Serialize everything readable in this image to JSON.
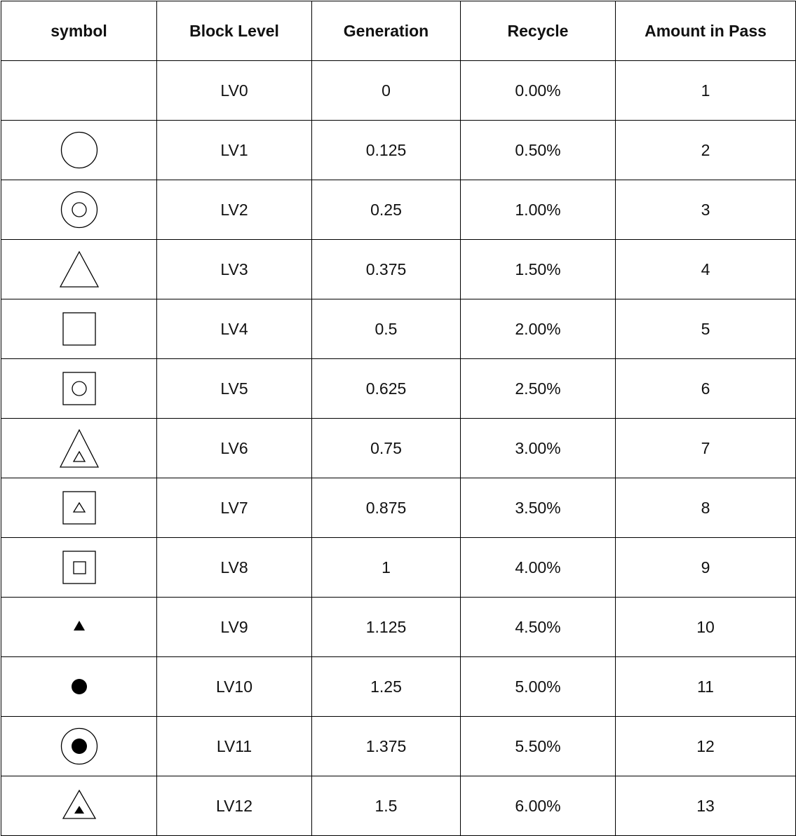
{
  "table": {
    "headers": [
      "symbol",
      "Block Level",
      "Generation",
      "Recycle",
      "Amount in Pass"
    ],
    "rows": [
      {
        "symbol": "none",
        "level": "LV0",
        "generation": "0",
        "recycle": "0.00%",
        "amount": "1"
      },
      {
        "symbol": "circle-icon",
        "level": "LV1",
        "generation": "0.125",
        "recycle": "0.50%",
        "amount": "2"
      },
      {
        "symbol": "circle-in-circle-icon",
        "level": "LV2",
        "generation": "0.25",
        "recycle": "1.00%",
        "amount": "3"
      },
      {
        "symbol": "triangle-icon",
        "level": "LV3",
        "generation": "0.375",
        "recycle": "1.50%",
        "amount": "4"
      },
      {
        "symbol": "square-icon",
        "level": "LV4",
        "generation": "0.5",
        "recycle": "2.00%",
        "amount": "5"
      },
      {
        "symbol": "circle-in-square-icon",
        "level": "LV5",
        "generation": "0.625",
        "recycle": "2.50%",
        "amount": "6"
      },
      {
        "symbol": "triangle-in-triangle-icon",
        "level": "LV6",
        "generation": "0.75",
        "recycle": "3.00%",
        "amount": "7"
      },
      {
        "symbol": "triangle-in-square-icon",
        "level": "LV7",
        "generation": "0.875",
        "recycle": "3.50%",
        "amount": "8"
      },
      {
        "symbol": "square-in-square-icon",
        "level": "LV8",
        "generation": "1",
        "recycle": "4.00%",
        "amount": "9"
      },
      {
        "symbol": "filled-triangle-icon",
        "level": "LV9",
        "generation": "1.125",
        "recycle": "4.50%",
        "amount": "10"
      },
      {
        "symbol": "filled-circle-icon",
        "level": "LV10",
        "generation": "1.25",
        "recycle": "5.00%",
        "amount": "11"
      },
      {
        "symbol": "filled-circle-in-circle-icon",
        "level": "LV11",
        "generation": "1.375",
        "recycle": "5.50%",
        "amount": "12"
      },
      {
        "symbol": "filled-triangle-in-triangle-icon",
        "level": "LV12",
        "generation": "1.5",
        "recycle": "6.00%",
        "amount": "13"
      }
    ]
  }
}
